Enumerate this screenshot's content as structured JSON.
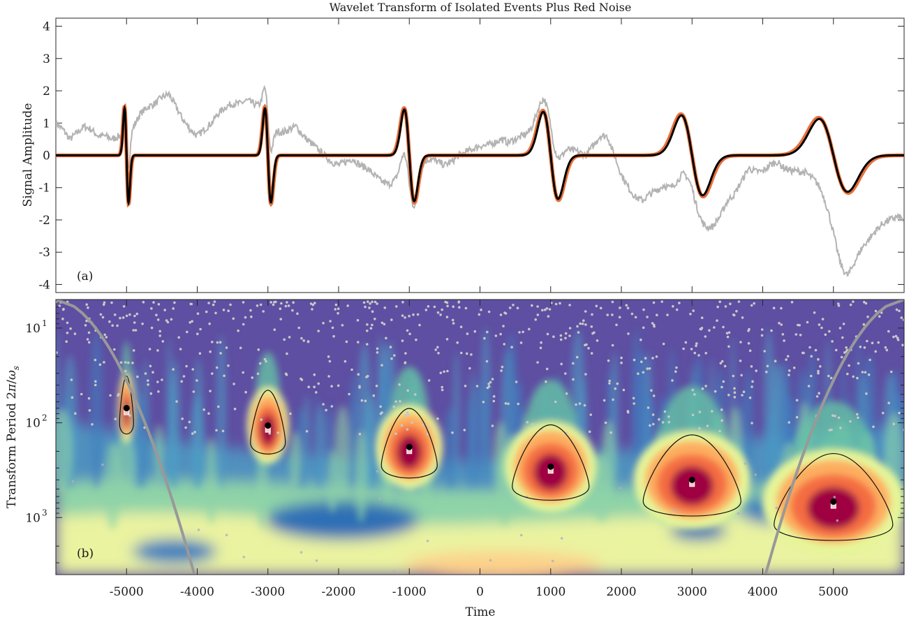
{
  "chart_data": [
    {
      "type": "line",
      "panel_label": "(a)",
      "title": "Wavelet Transform of Isolated Events Plus Red Noise",
      "ylabel": "Signal Amplitude",
      "xlim": [
        -6000,
        6000
      ],
      "ylim": [
        -4.25,
        4.25
      ],
      "y_ticks": [
        "4",
        "3",
        "2",
        "1",
        "0",
        "-1",
        "-2",
        "-3",
        "-4"
      ],
      "y_tick_values": [
        4,
        3,
        2,
        1,
        0,
        -1,
        -2,
        -3,
        -4
      ],
      "events": [
        {
          "t": -5000,
          "width": 28,
          "amplitude": 2.0
        },
        {
          "t": -3000,
          "width": 42,
          "amplitude": 2.0
        },
        {
          "t": -1000,
          "width": 70,
          "amplitude": 1.95
        },
        {
          "t": 1000,
          "width": 105,
          "amplitude": 1.85
        },
        {
          "t": 3000,
          "width": 150,
          "amplitude": 1.7
        },
        {
          "t": 5000,
          "width": 200,
          "amplitude": 1.55
        }
      ],
      "series": [
        {
          "role": "noisy-signal",
          "color": "#b3b3b3",
          "x": [
            -6000,
            -5900,
            -5800,
            -5700,
            -5600,
            -5500,
            -5400,
            -5300,
            -5200,
            -5100,
            -5000,
            -4900,
            -4800,
            -4700,
            -4600,
            -4500,
            -4400,
            -4300,
            -4200,
            -4100,
            -4000,
            -3900,
            -3800,
            -3700,
            -3600,
            -3500,
            -3400,
            -3300,
            -3200,
            -3100,
            -3000,
            -2900,
            -2800,
            -2700,
            -2600,
            -2500,
            -2400,
            -2300,
            -2200,
            -2100,
            -2000,
            -1900,
            -1800,
            -1700,
            -1600,
            -1500,
            -1400,
            -1300,
            -1200,
            -1100,
            -1000,
            -900,
            -800,
            -700,
            -600,
            -500,
            -400,
            -300,
            -200,
            -100,
            0,
            100,
            200,
            300,
            400,
            500,
            600,
            700,
            800,
            900,
            1000,
            1100,
            1200,
            1300,
            1400,
            1500,
            1600,
            1700,
            1800,
            1900,
            2000,
            2100,
            2200,
            2300,
            2400,
            2500,
            2600,
            2700,
            2800,
            2900,
            3000,
            3100,
            3200,
            3300,
            3400,
            3500,
            3600,
            3700,
            3800,
            3900,
            4000,
            4100,
            4200,
            4300,
            4400,
            4500,
            4600,
            4700,
            4800,
            4900,
            5000,
            5100,
            5200,
            5300,
            5400,
            5500,
            5600,
            5700,
            5800,
            5900,
            6000
          ],
          "y": [
            1.0,
            0.8,
            0.5,
            0.7,
            0.9,
            0.8,
            0.6,
            0.6,
            0.5,
            0.6,
            0.3,
            0.9,
            1.3,
            1.5,
            1.6,
            1.8,
            1.9,
            1.5,
            1.1,
            0.8,
            0.6,
            0.8,
            1.0,
            1.3,
            1.5,
            1.6,
            1.6,
            1.7,
            1.6,
            1.5,
            1.1,
            0.8,
            0.7,
            0.8,
            0.9,
            0.6,
            0.4,
            0.2,
            0.0,
            -0.2,
            -0.3,
            -0.2,
            -0.1,
            -0.3,
            -0.4,
            -0.6,
            -0.8,
            -0.9,
            -0.8,
            -0.7,
            -0.9,
            -0.7,
            -0.2,
            -0.1,
            -0.2,
            -0.3,
            -0.2,
            0.0,
            0.1,
            0.2,
            0.3,
            0.3,
            0.4,
            0.5,
            0.4,
            0.5,
            0.6,
            0.7,
            0.9,
            1.0,
            0.9,
            0.7,
            0.5,
            0.2,
            0.1,
            0.0,
            0.3,
            0.6,
            0.6,
            0.0,
            -0.6,
            -1.0,
            -1.3,
            -1.4,
            -1.2,
            -1.1,
            -1.0,
            -1.3,
            -1.4,
            -1.2,
            -1.0,
            -1.2,
            -1.6,
            -1.9,
            -1.8,
            -1.4,
            -1.2,
            -0.8,
            -0.4,
            -0.5,
            -0.5,
            -0.3,
            -0.2,
            -0.4,
            -0.5,
            -0.6,
            -0.8,
            -1.2,
            -1.6,
            -2.0,
            -2.4,
            -2.9,
            -3.1,
            -2.8,
            -2.6,
            -2.5,
            -2.3,
            -2.1,
            -2.0,
            -1.9,
            -2.0
          ]
        },
        {
          "role": "wavelet-fit",
          "color": "#e8703a"
        },
        {
          "role": "true-events",
          "color": "#000000"
        }
      ]
    },
    {
      "type": "heatmap",
      "panel_label": "(b)",
      "xlabel": "Time",
      "ylabel": "Transform Period 2π/ωs",
      "xlim": [
        -6000,
        6000
      ],
      "x_ticks": [
        "-5000",
        "-4000",
        "-3000",
        "-2000",
        "-1000",
        "0",
        "1000",
        "2000",
        "3000",
        "4000",
        "5000"
      ],
      "x_tick_values": [
        -5000,
        -4000,
        -3000,
        -2000,
        -1000,
        0,
        1000,
        2000,
        3000,
        4000,
        5000
      ],
      "ylim_log_period": [
        5,
        4000
      ],
      "y_scale": "log",
      "y_ticks": [
        "10",
        "10",
        "10"
      ],
      "y_tick_exponents": [
        "1",
        "2",
        "3"
      ],
      "y_tick_values": [
        10,
        100,
        1000
      ],
      "colormap": [
        "#5e4fa2",
        "#3288bd",
        "#66c2a5",
        "#abdda4",
        "#e6f598",
        "#fee08b",
        "#fdae61",
        "#f46d43",
        "#d53e4f",
        "#9e0142"
      ],
      "ridge_maxima": [
        {
          "t": -5000,
          "period": 70
        },
        {
          "t": -3000,
          "period": 107
        },
        {
          "t": -1000,
          "period": 180
        },
        {
          "t": 1000,
          "period": 290
        },
        {
          "t": 3000,
          "period": 400
        },
        {
          "t": 5000,
          "period": 680
        }
      ],
      "cone_of_influence_color": "#999999"
    }
  ]
}
